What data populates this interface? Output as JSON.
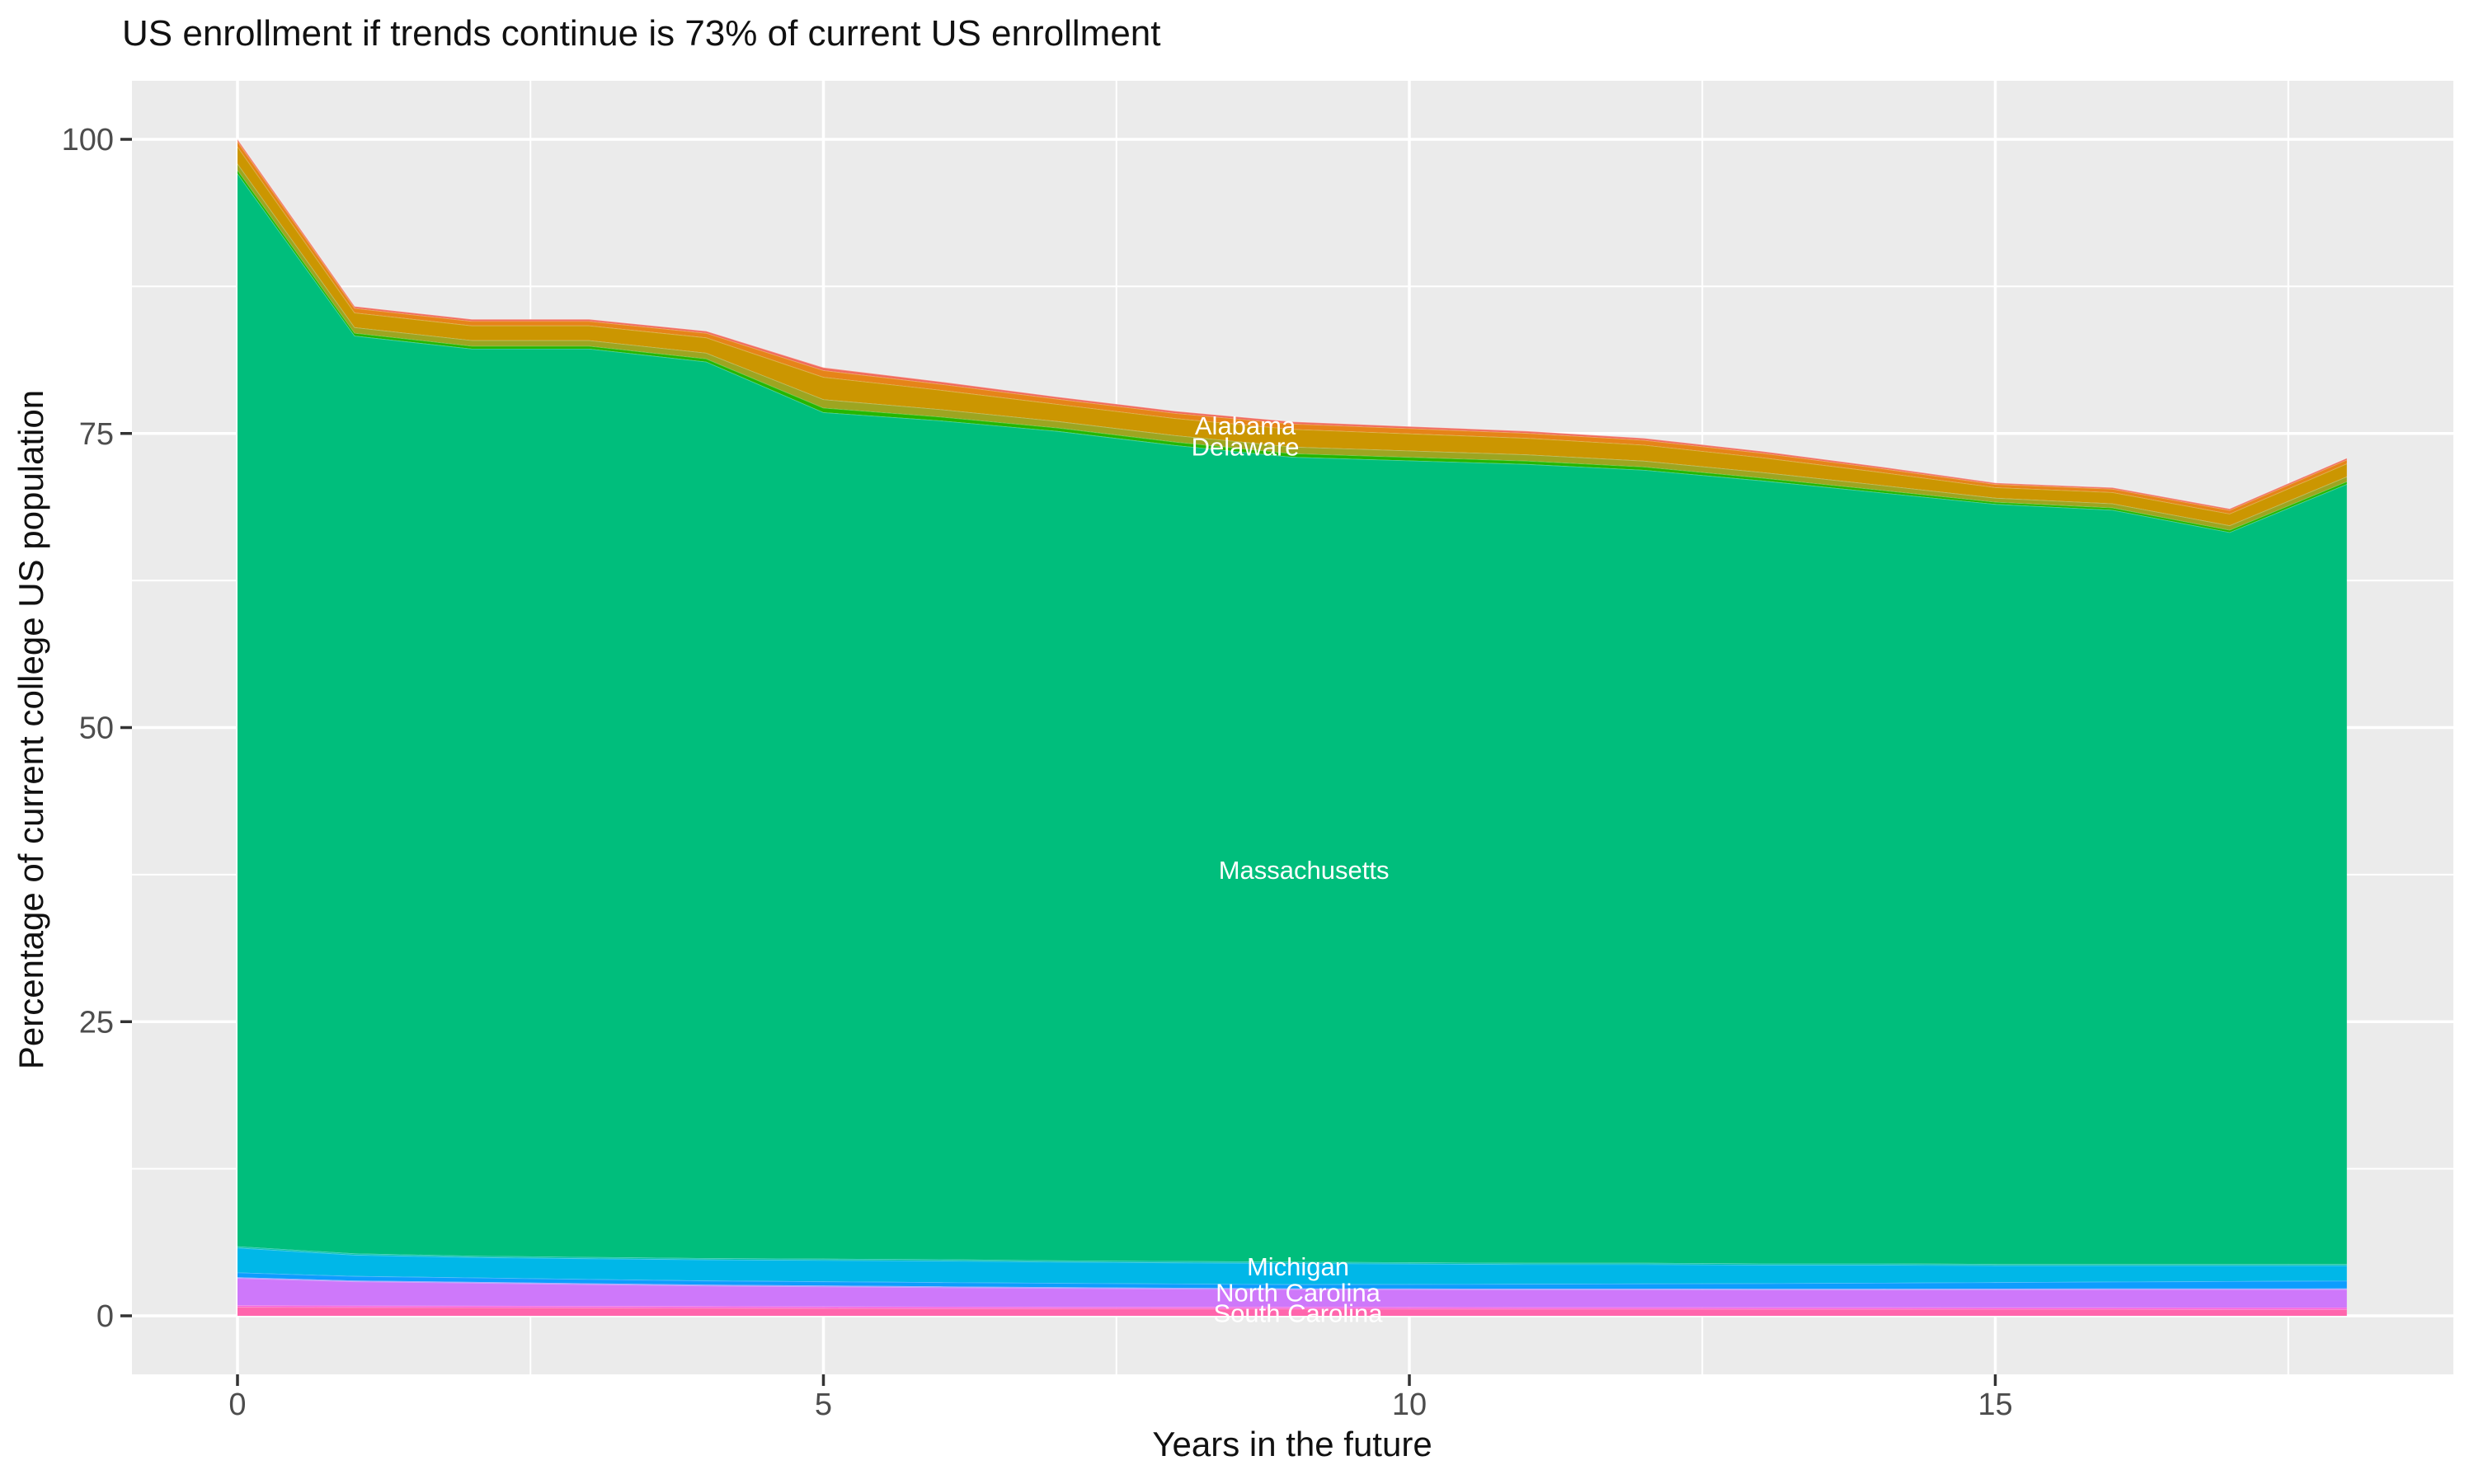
{
  "title": "US enrollment if trends continue is 73% of current US enrollment",
  "colors": {
    "panel_background": "#EBEBEB",
    "gridline": "#FFFFFF",
    "tick_mark": "#333333",
    "tick_label_text": "#4D4D4D",
    "title_text": "#111111",
    "annotation_text": "#FFFFFF"
  },
  "axes": {
    "x": {
      "label": "Years in the future",
      "range": [
        0,
        18
      ],
      "major_ticks": [
        0,
        5,
        10,
        15
      ],
      "tick_labels": [
        "0",
        "5",
        "10",
        "15"
      ],
      "minor_gridlines": [
        2.5,
        7.5,
        12.5,
        17.5
      ]
    },
    "y": {
      "label": "Percentage of current college US population",
      "range": [
        0,
        100
      ],
      "major_ticks": [
        100,
        75,
        50,
        25,
        0
      ],
      "tick_labels": [
        "100",
        "75",
        "50",
        "25",
        "0"
      ],
      "minor_gridlines": [
        87.5,
        62.5,
        37.5,
        12.5
      ]
    }
  },
  "chart_data": {
    "type": "area",
    "stacked": true,
    "title": "US enrollment if trends continue is 73% of current US enrollment",
    "xlabel": "Years in the future",
    "ylabel": "Percentage of current college US population",
    "xlim": [
      0,
      18
    ],
    "ylim": [
      0,
      100
    ],
    "grid": "white-on-gray",
    "legend": "none",
    "x": [
      0,
      1,
      2,
      3,
      4,
      5,
      6,
      7,
      8,
      9,
      10,
      11,
      12,
      13,
      14,
      15,
      16,
      17,
      18
    ],
    "stack_total_percent": [
      100,
      85.8,
      84.7,
      84.7,
      83.7,
      80.6,
      79.4,
      78.1,
      76.9,
      76.0,
      75.6,
      75.2,
      74.6,
      73.5,
      72.2,
      70.8,
      70.4,
      68.6,
      72.9
    ],
    "series": [
      {
        "id": "south-carolina",
        "label": "South Carolina",
        "color": "#FF65AC",
        "values": [
          0.75,
          0.72,
          0.7,
          0.68,
          0.66,
          0.64,
          0.62,
          0.61,
          0.6,
          0.6,
          0.59,
          0.58,
          0.58,
          0.57,
          0.57,
          0.56,
          0.56,
          0.55,
          0.55
        ]
      },
      {
        "id": "unlabeled-sliver-1",
        "label": "",
        "color": "#F962DD",
        "values": [
          0.15,
          0.15,
          0.15,
          0.15,
          0.15,
          0.15,
          0.15,
          0.15,
          0.15,
          0.15,
          0.15,
          0.15,
          0.15,
          0.15,
          0.15,
          0.15,
          0.15,
          0.15,
          0.15
        ]
      },
      {
        "id": "north-carolina",
        "label": "North Carolina",
        "color": "#CE78FA",
        "values": [
          2.3,
          2.05,
          1.95,
          1.85,
          1.75,
          1.7,
          1.65,
          1.6,
          1.55,
          1.5,
          1.5,
          1.5,
          1.5,
          1.5,
          1.5,
          1.52,
          1.53,
          1.54,
          1.55
        ]
      },
      {
        "id": "unlabeled-sliver-2",
        "label": "",
        "color": "#8B93FF",
        "values": [
          0.08,
          0.08,
          0.08,
          0.08,
          0.08,
          0.08,
          0.08,
          0.08,
          0.08,
          0.08,
          0.08,
          0.08,
          0.08,
          0.08,
          0.08,
          0.08,
          0.08,
          0.08,
          0.08
        ]
      },
      {
        "id": "unlabeled-sliver-3",
        "label": "",
        "color": "#0D9DFE",
        "values": [
          0.4,
          0.38,
          0.37,
          0.36,
          0.35,
          0.35,
          0.35,
          0.35,
          0.35,
          0.35,
          0.37,
          0.4,
          0.43,
          0.46,
          0.5,
          0.54,
          0.58,
          0.62,
          0.65
        ]
      },
      {
        "id": "michigan",
        "label": "Michigan",
        "color": "#00B7E8",
        "values": [
          2.1,
          1.8,
          1.73,
          1.76,
          1.79,
          1.81,
          1.83,
          1.79,
          1.8,
          1.8,
          1.74,
          1.67,
          1.64,
          1.57,
          1.53,
          1.43,
          1.38,
          1.34,
          1.3
        ]
      },
      {
        "id": "unlabeled-sliver-4",
        "label": "",
        "color": "#00C1AB",
        "values": [
          0.12,
          0.12,
          0.12,
          0.12,
          0.12,
          0.12,
          0.12,
          0.12,
          0.12,
          0.12,
          0.12,
          0.12,
          0.12,
          0.12,
          0.12,
          0.12,
          0.12,
          0.12,
          0.12
        ]
      },
      {
        "id": "massachusetts",
        "label": "Massachusetts",
        "color": "#00BE7C",
        "values": [
          91.2,
          78.0,
          77.1,
          77.2,
          76.2,
          71.95,
          71.3,
          70.5,
          69.35,
          68.4,
          68.15,
          67.9,
          67.4,
          66.55,
          65.55,
          64.6,
          64.1,
          62.2,
          66.3
        ]
      },
      {
        "id": "unlabeled-sliver-5",
        "label": "",
        "color": "#24B700",
        "values": [
          0.29,
          0.24,
          0.24,
          0.24,
          0.26,
          0.38,
          0.32,
          0.29,
          0.29,
          0.3,
          0.29,
          0.28,
          0.27,
          0.24,
          0.22,
          0.18,
          0.19,
          0.2,
          0.22
        ]
      },
      {
        "id": "delaware",
        "label": "Delaware",
        "color": "#9DA521",
        "values": [
          0.55,
          0.48,
          0.48,
          0.48,
          0.49,
          0.72,
          0.63,
          0.55,
          0.55,
          0.57,
          0.55,
          0.53,
          0.51,
          0.48,
          0.42,
          0.34,
          0.36,
          0.38,
          0.42
        ]
      },
      {
        "id": "alabama",
        "label": "Alabama",
        "color": "#CB9601",
        "values": [
          1.45,
          1.25,
          1.25,
          1.25,
          1.3,
          1.9,
          1.65,
          1.45,
          1.45,
          1.5,
          1.45,
          1.4,
          1.35,
          1.25,
          1.1,
          0.9,
          0.95,
          1.0,
          1.1
        ]
      },
      {
        "id": "unlabeled-sliver-6",
        "label": "",
        "color": "#E68418",
        "values": [
          0.44,
          0.38,
          0.38,
          0.38,
          0.39,
          0.57,
          0.5,
          0.44,
          0.44,
          0.45,
          0.44,
          0.42,
          0.41,
          0.38,
          0.33,
          0.27,
          0.29,
          0.3,
          0.33
        ]
      },
      {
        "id": "unlabeled-sliver-7",
        "label": "",
        "color": "#F0695B",
        "values": [
          0.17,
          0.15,
          0.15,
          0.15,
          0.16,
          0.23,
          0.2,
          0.17,
          0.17,
          0.18,
          0.17,
          0.17,
          0.16,
          0.15,
          0.13,
          0.11,
          0.11,
          0.12,
          0.13
        ]
      }
    ],
    "annotations": [
      {
        "text": "Alabama",
        "x": 8.6,
        "y": 75.7
      },
      {
        "text": "Delaware",
        "x": 8.6,
        "y": 73.9
      },
      {
        "text": "Massachusetts",
        "x": 9.1,
        "y": 37.9
      },
      {
        "text": "Michigan",
        "x": 9.05,
        "y": 4.2
      },
      {
        "text": "North Carolina",
        "x": 9.05,
        "y": 2.0
      },
      {
        "text": "South Carolina",
        "x": 9.05,
        "y": 0.25
      }
    ]
  }
}
